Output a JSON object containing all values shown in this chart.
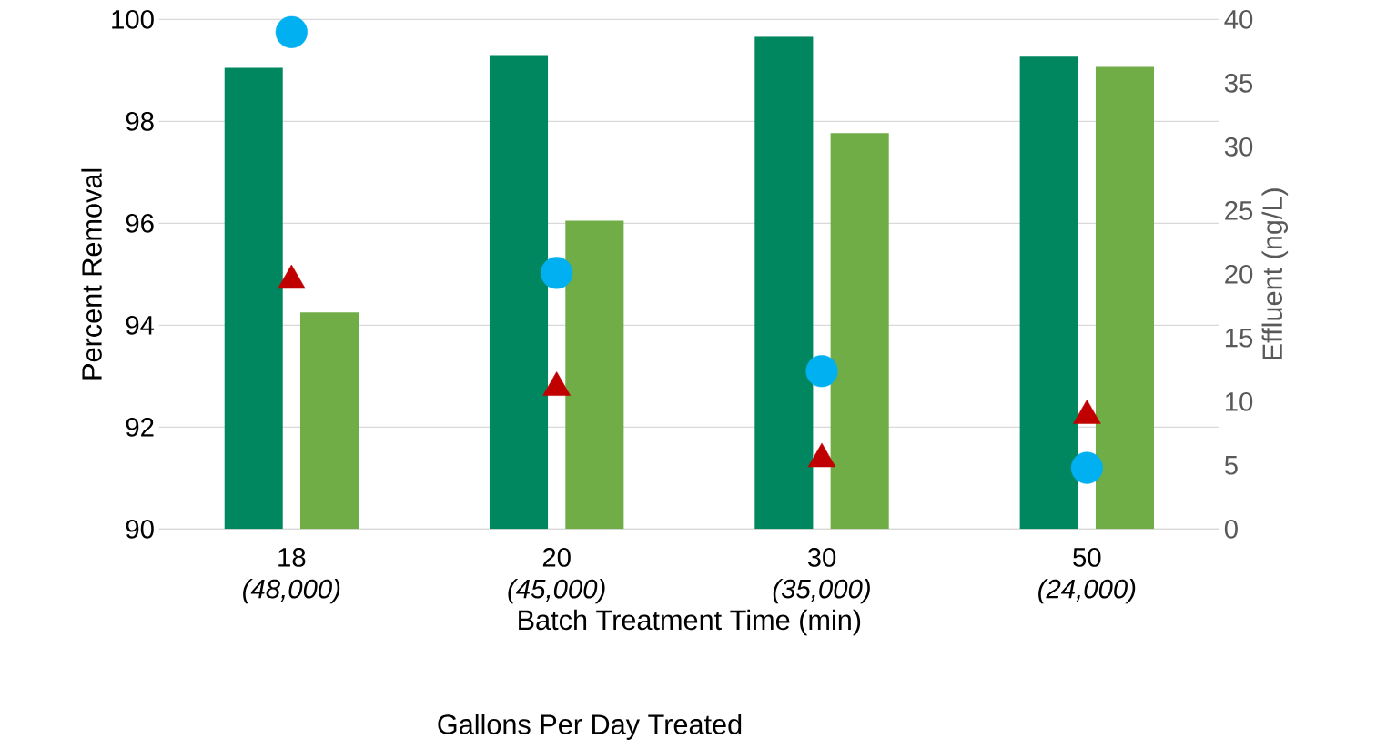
{
  "chart_data": {
    "type": "bar",
    "categories": [
      "18 *(48,000)*",
      "20 *(45,000)*",
      "30 *(35,000)*",
      "50 *(24,000)*"
    ],
    "xlabel": "Batch Treatment Time (min)",
    "ylabel": "Percent Removal",
    "y2label": "Effluent (ng/L)",
    "annotations": [
      "Gallons Per Day Treated"
    ],
    "ylim": [
      90,
      100
    ],
    "yticks": [
      90,
      92,
      94,
      96,
      98,
      100
    ],
    "y2lim": [
      0,
      40
    ],
    "y2ticks": [
      0,
      5,
      10,
      15,
      20,
      25,
      30,
      35,
      40
    ],
    "grid": "y",
    "series": [
      {
        "color": "#00875f",
        "values": [
          99.05,
          99.3,
          99.66,
          99.27
        ]
      },
      {
        "color": "#70ad47",
        "values": [
          94.25,
          96.05,
          97.77,
          99.07
        ]
      },
      {
        "type": "scatter",
        "axis": "y2",
        "marker": "circle",
        "color": "#00b0f0",
        "values": [
          39.0,
          20.1,
          12.4,
          4.8
        ]
      },
      {
        "type": "scatter",
        "axis": "y2",
        "marker": "triangle",
        "color": "#c00000",
        "values": [
          19.5,
          11.1,
          5.5,
          8.9
        ]
      }
    ]
  }
}
